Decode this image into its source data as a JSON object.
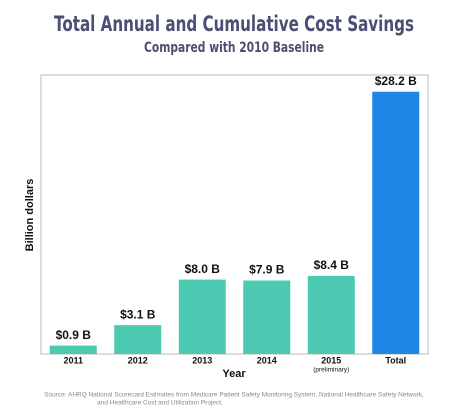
{
  "chart_data": {
    "type": "bar",
    "title": "Total Annual and Cumulative Cost Savings",
    "subtitle": "Compared with 2010 Baseline",
    "x_label": "Year",
    "y_label": "Billion dollars",
    "categories": [
      "2011",
      "2012",
      "2013",
      "2014",
      "2015",
      "Total"
    ],
    "category_notes": [
      null,
      null,
      null,
      null,
      "(preliminary)",
      null
    ],
    "values": [
      0.9,
      3.1,
      8.0,
      7.9,
      8.4,
      28.2
    ],
    "value_labels": [
      "$0.9 B",
      "$3.1 B",
      "$8.0 B",
      "$7.9 B",
      "$8.4 B",
      "$28.2 B"
    ],
    "colors": [
      "#4cc9b1",
      "#4cc9b1",
      "#4cc9b1",
      "#4cc9b1",
      "#4cc9b1",
      "#1e86e6"
    ],
    "ylim": [
      0,
      30
    ],
    "source": [
      "Source:  AHRQ National Scorecard Estimates from Medicare Patient Safety Monitoring System, National Healthcare Safety Network,",
      "and Healthcare Cost and Utilization Project."
    ]
  }
}
